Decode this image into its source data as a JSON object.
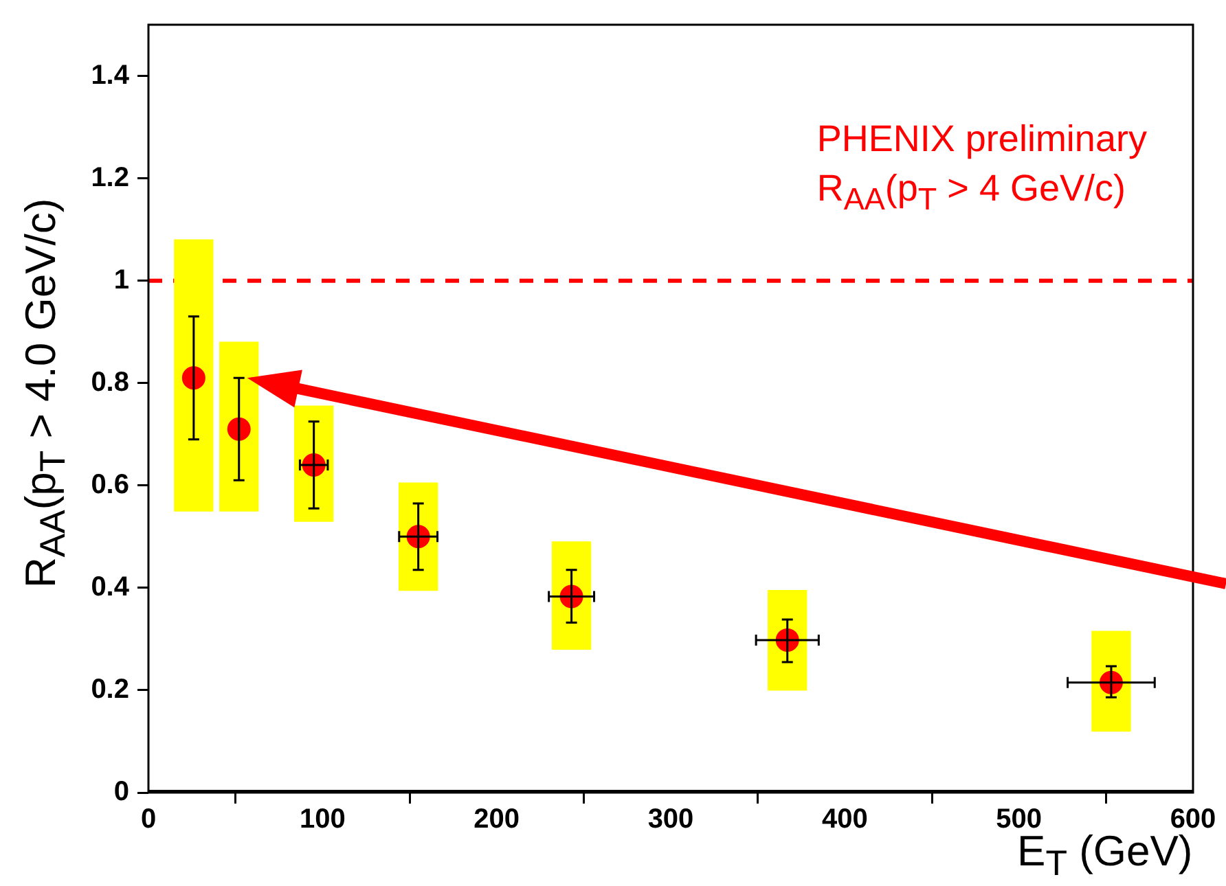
{
  "chart_data": {
    "type": "scatter",
    "xlabel": "E$_{T}$ (GeV)",
    "ylabel": "R$_{AA}$(p$_{T}$ > 4.0 GeV/c)",
    "annotations": [
      "PHENIX preliminary",
      "R$_{AA}$(p$_{T}$ > 4 GeV/c)"
    ],
    "series": [
      {
        "type": "bar",
        "color": "#ffff00",
        "x": [
          26,
          52,
          95,
          155,
          243,
          367,
          553
        ],
        "base": [
          0.55,
          0.55,
          0.53,
          0.395,
          0.28,
          0.2,
          0.12
        ],
        "values": [
          0.53,
          0.33,
          0.225,
          0.21,
          0.21,
          0.195,
          0.195
        ]
      },
      {
        "color": "#ff0000",
        "x": [
          26,
          52,
          95,
          155,
          243,
          367,
          553
        ],
        "values": [
          0.81,
          0.71,
          0.64,
          0.5,
          0.383,
          0.298,
          0.215
        ],
        "errors": [
          [
            0.69,
            0.93
          ],
          [
            0.61,
            0.81
          ],
          [
            0.555,
            0.725
          ],
          [
            0.435,
            0.565
          ],
          [
            0.332,
            0.435
          ],
          [
            0.255,
            0.338
          ],
          [
            0.186,
            0.247
          ]
        ],
        "xerrors": [
          null,
          null,
          8,
          11,
          13,
          18,
          25
        ]
      }
    ],
    "marker": "circle",
    "xlim": [
      0,
      600
    ],
    "xticks": [
      0,
      100,
      200,
      300,
      400,
      500,
      600
    ],
    "ylim": [
      0,
      1.5
    ],
    "yticks": [
      0,
      0.2,
      0.4,
      0.6,
      0.8,
      1,
      1.2,
      1.4
    ],
    "ref_lines": [
      {
        "axis": "y",
        "value": 1,
        "color": "#ff0000",
        "line_style": "dashed"
      }
    ],
    "grid": false
  }
}
